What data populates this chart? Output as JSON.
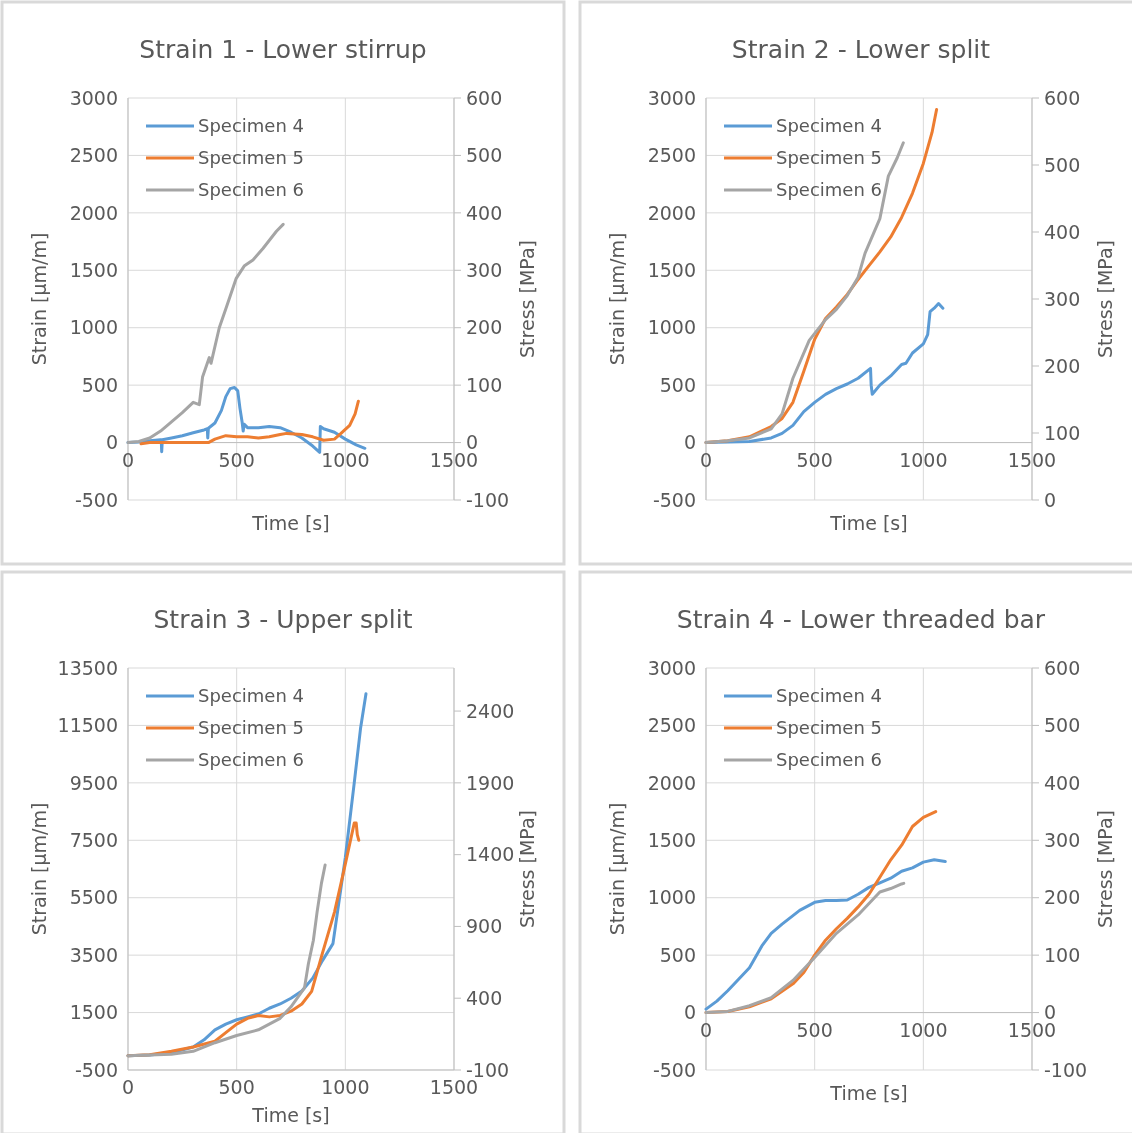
{
  "chart_data": [
    {
      "type": "line",
      "title": "Strain 1 - Lower stirrup",
      "xlabel": "Time [s]",
      "ylabel": "Strain [µm/m]",
      "y2label": "Stress [MPa]",
      "xlim": [
        0,
        1500
      ],
      "xticks": [
        0,
        500,
        1000,
        1500
      ],
      "ylim": [
        -500,
        3000
      ],
      "yticks": [
        -500,
        0,
        500,
        1000,
        1500,
        2000,
        2500,
        3000
      ],
      "y2lim": [
        -100,
        600
      ],
      "y2ticks": [
        -100,
        0,
        100,
        200,
        300,
        400,
        500,
        600
      ],
      "grid": true,
      "legend": "top left",
      "series": [
        {
          "name": "Specimen 4",
          "color": "#5b9bd5",
          "x": [
            0,
            50,
            100,
            150,
            153,
            155,
            158,
            200,
            250,
            300,
            350,
            365,
            367,
            370,
            400,
            430,
            450,
            470,
            490,
            505,
            515,
            525,
            530,
            535,
            550,
            600,
            650,
            700,
            750,
            800,
            850,
            882,
            885,
            900,
            950,
            1000,
            1050,
            1090
          ],
          "values": [
            0,
            5,
            15,
            25,
            25,
            -80,
            25,
            40,
            60,
            85,
            110,
            120,
            40,
            125,
            170,
            280,
            400,
            470,
            480,
            450,
            300,
            180,
            100,
            160,
            130,
            130,
            140,
            130,
            90,
            40,
            -30,
            -85,
            140,
            120,
            90,
            30,
            -20,
            -50
          ]
        },
        {
          "name": "Specimen 5",
          "color": "#ed7d31",
          "x": [
            60,
            100,
            200,
            300,
            370,
            400,
            450,
            500,
            550,
            600,
            650,
            700,
            730,
            800,
            850,
            900,
            950,
            980,
            1020,
            1045,
            1060
          ],
          "values": [
            -10,
            0,
            0,
            0,
            0,
            30,
            60,
            50,
            50,
            40,
            50,
            70,
            80,
            70,
            50,
            20,
            30,
            80,
            150,
            250,
            360
          ]
        },
        {
          "name": "Specimen 6",
          "color": "#a5a5a5",
          "x": [
            0,
            50,
            100,
            150,
            200,
            250,
            300,
            328,
            343,
            374,
            382,
            420,
            451,
            498,
            536,
            575,
            621,
            683,
            714
          ],
          "values": [
            0,
            10,
            40,
            100,
            180,
            260,
            350,
            330,
            570,
            740,
            690,
            1000,
            1170,
            1430,
            1540,
            1590,
            1690,
            1840,
            1900
          ]
        }
      ]
    },
    {
      "type": "line",
      "title": "Strain 2 - Lower split",
      "xlabel": "Time [s]",
      "ylabel": "Strain [µm/m]",
      "y2label": "Stress [MPa]",
      "xlim": [
        0,
        1500
      ],
      "xticks": [
        0,
        500,
        1000,
        1500
      ],
      "ylim": [
        -500,
        3000
      ],
      "yticks": [
        -500,
        0,
        500,
        1000,
        1500,
        2000,
        2500,
        3000
      ],
      "y2lim": [
        0,
        600
      ],
      "y2ticks": [
        0,
        100,
        200,
        300,
        400,
        500,
        600
      ],
      "grid": true,
      "legend": "top left",
      "series": [
        {
          "name": "Specimen 4",
          "color": "#5b9bd5",
          "x": [
            0,
            100,
            200,
            300,
            350,
            400,
            450,
            500,
            550,
            600,
            650,
            700,
            757,
            760,
            765,
            800,
            850,
            900,
            920,
            950,
            1000,
            1020,
            1031,
            1050,
            1070,
            1090
          ],
          "values": [
            0,
            5,
            10,
            40,
            80,
            150,
            270,
            350,
            420,
            470,
            510,
            560,
            646,
            500,
            420,
            500,
            580,
            680,
            690,
            780,
            860,
            940,
            1140,
            1170,
            1210,
            1170
          ]
        },
        {
          "name": "Specimen 5",
          "color": "#ed7d31",
          "x": [
            0,
            100,
            200,
            300,
            350,
            400,
            450,
            500,
            550,
            600,
            650,
            700,
            750,
            800,
            850,
            900,
            950,
            1000,
            1040,
            1061
          ],
          "values": [
            0,
            15,
            50,
            140,
            210,
            350,
            620,
            900,
            1080,
            1180,
            1290,
            1420,
            1540,
            1660,
            1790,
            1960,
            2170,
            2430,
            2700,
            2900
          ]
        },
        {
          "name": "Specimen 6",
          "color": "#a5a5a5",
          "x": [
            0,
            100,
            200,
            300,
            350,
            400,
            475,
            550,
            600,
            650,
            700,
            732,
            800,
            839,
            880,
            908
          ],
          "values": [
            0,
            15,
            40,
            120,
            250,
            560,
            890,
            1070,
            1160,
            1280,
            1440,
            1650,
            1950,
            2320,
            2480,
            2610
          ]
        }
      ]
    },
    {
      "type": "line",
      "title": "Strain 3 - Upper split",
      "xlabel": "Time [s]",
      "ylabel": "Strain [µm/m]",
      "y2label": "Stress [MPa]",
      "xlim": [
        0,
        1500
      ],
      "xticks": [
        0,
        500,
        1000,
        1500
      ],
      "ylim": [
        -500,
        13500
      ],
      "yticks": [
        -500,
        1500,
        3500,
        5500,
        7500,
        9500,
        11500,
        13500
      ],
      "y2lim": [
        -100,
        2700
      ],
      "y2ticks": [
        -100,
        400,
        900,
        1400,
        1900,
        2400
      ],
      "grid": true,
      "legend": "top left",
      "series": [
        {
          "name": "Specimen 4",
          "color": "#5b9bd5",
          "x": [
            0,
            100,
            200,
            300,
            350,
            400,
            450,
            500,
            550,
            600,
            650,
            700,
            750,
            800,
            850,
            894,
            943,
            1000,
            1041,
            1070,
            1095
          ],
          "values": [
            0,
            20,
            100,
            300,
            550,
            900,
            1100,
            1250,
            1350,
            1450,
            1650,
            1800,
            2000,
            2250,
            2700,
            3300,
            3900,
            6900,
            9500,
            11400,
            12600
          ]
        },
        {
          "name": "Specimen 5",
          "color": "#ed7d31",
          "x": [
            0,
            100,
            200,
            300,
            400,
            450,
            500,
            550,
            600,
            650,
            700,
            750,
            800,
            845,
            894,
            950,
            992,
            1041,
            1050,
            1055,
            1062
          ],
          "values": [
            0,
            30,
            150,
            300,
            500,
            800,
            1100,
            1300,
            1400,
            1350,
            1400,
            1550,
            1800,
            2240,
            3550,
            5000,
            6400,
            8100,
            8100,
            7700,
            7500
          ]
        },
        {
          "name": "Specimen 6",
          "color": "#a5a5a5",
          "x": [
            0,
            200,
            300,
            400,
            500,
            600,
            700,
            750,
            812,
            830,
            853,
            870,
            890,
            907
          ],
          "values": [
            0,
            50,
            150,
            450,
            700,
            900,
            1300,
            1700,
            2360,
            3200,
            4020,
            5000,
            6000,
            6640
          ]
        }
      ]
    },
    {
      "type": "line",
      "title": "Strain 4 - Lower threaded bar",
      "xlabel": "Time [s]",
      "ylabel": "Strain [µm/m]",
      "y2label": "Stress [MPa]",
      "xlim": [
        0,
        1500
      ],
      "xticks": [
        0,
        500,
        1000,
        1500
      ],
      "ylim": [
        -500,
        3000
      ],
      "yticks": [
        -500,
        0,
        500,
        1000,
        1500,
        2000,
        2500,
        3000
      ],
      "y2lim": [
        -100,
        600
      ],
      "y2ticks": [
        -100,
        0,
        100,
        200,
        300,
        400,
        500,
        600
      ],
      "grid": true,
      "legend": "top left",
      "series": [
        {
          "name": "Specimen 4",
          "color": "#5b9bd5",
          "x": [
            0,
            50,
            100,
            150,
            200,
            257,
            300,
            350,
            431,
            500,
            550,
            600,
            650,
            700,
            750,
            800,
            850,
            900,
            950,
            1000,
            1050,
            1101
          ],
          "values": [
            30,
            100,
            190,
            290,
            390,
            580,
            690,
            770,
            890,
            960,
            975,
            975,
            980,
            1030,
            1090,
            1130,
            1170,
            1230,
            1260,
            1310,
            1330,
            1315
          ]
        },
        {
          "name": "Specimen 5",
          "color": "#ed7d31",
          "x": [
            0,
            100,
            200,
            300,
            400,
            450,
            500,
            550,
            600,
            650,
            700,
            750,
            797,
            850,
            901,
            950,
            1000,
            1057
          ],
          "values": [
            0,
            10,
            50,
            120,
            250,
            350,
            500,
            630,
            730,
            820,
            920,
            1030,
            1170,
            1330,
            1460,
            1620,
            1700,
            1750
          ]
        },
        {
          "name": "Specimen 6",
          "color": "#a5a5a5",
          "x": [
            0,
            100,
            200,
            300,
            400,
            500,
            600,
            700,
            750,
            800,
            850,
            900,
            910
          ],
          "values": [
            0,
            10,
            60,
            130,
            280,
            480,
            690,
            850,
            950,
            1050,
            1080,
            1120,
            1125
          ]
        }
      ]
    }
  ]
}
